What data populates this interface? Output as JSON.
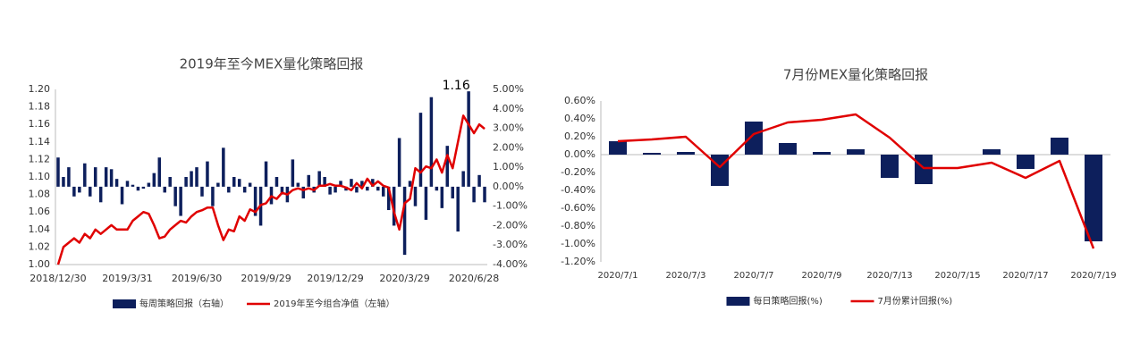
{
  "chart_data": [
    {
      "type": "combo",
      "title": "2019年至今MEX量化策略回报",
      "annotation": "1.16",
      "categories": [
        "2018/12/30",
        null,
        null,
        null,
        null,
        null,
        null,
        null,
        null,
        null,
        null,
        null,
        null,
        "2019/3/31",
        null,
        null,
        null,
        null,
        null,
        null,
        null,
        null,
        null,
        null,
        null,
        null,
        "2019/6/30",
        null,
        null,
        null,
        null,
        null,
        null,
        null,
        null,
        null,
        null,
        null,
        null,
        "2019/9/29",
        null,
        null,
        null,
        null,
        null,
        null,
        null,
        null,
        null,
        null,
        null,
        null,
        "2019/12/29",
        null,
        null,
        null,
        null,
        null,
        null,
        null,
        null,
        null,
        null,
        null,
        null,
        "2020/3/29",
        null,
        null,
        null,
        null,
        null,
        null,
        null,
        null,
        null,
        null,
        null,
        null,
        "2020/6/28",
        null,
        null
      ],
      "series": [
        {
          "name": "每周策略回报（右轴）",
          "type": "bar",
          "axis": "y2",
          "color": "#0d1f5c",
          "values": [
            1.5,
            0.5,
            1.0,
            -0.5,
            -0.3,
            1.2,
            -0.5,
            1.0,
            -0.8,
            1.0,
            0.9,
            0.4,
            -0.9,
            0.3,
            0.1,
            -0.2,
            -0.1,
            0.2,
            0.7,
            1.5,
            -0.3,
            0.5,
            -1.0,
            -1.5,
            0.5,
            0.8,
            1.0,
            -0.5,
            1.3,
            -1.0,
            0.2,
            2.0,
            -0.3,
            0.5,
            0.4,
            -0.3,
            0.2,
            -1.5,
            -2.0,
            1.3,
            -0.9,
            0.5,
            -0.4,
            -0.8,
            1.4,
            0.2,
            -0.6,
            0.6,
            -0.3,
            0.8,
            0.5,
            -0.4,
            -0.3,
            0.3,
            -0.2,
            0.4,
            -0.3,
            0.3,
            -0.2,
            0.4,
            -0.2,
            -0.5,
            -1.2,
            -2.0,
            2.5,
            -3.5,
            0.3,
            -1.0,
            3.8,
            -1.7,
            4.6,
            -0.2,
            -1.1,
            2.1,
            -0.6,
            -2.3,
            0.8,
            4.9,
            -0.8,
            0.6,
            -0.8
          ]
        },
        {
          "name": "2019年至今组合净值（左轴）",
          "type": "line",
          "color": "#e00000",
          "values": [
            1.0,
            1.02,
            1.025,
            1.03,
            1.025,
            1.035,
            1.03,
            1.04,
            1.035,
            1.04,
            1.045,
            1.04,
            1.04,
            1.04,
            1.05,
            1.055,
            1.06,
            1.058,
            1.045,
            1.03,
            1.032,
            1.04,
            1.045,
            1.05,
            1.048,
            1.055,
            1.06,
            1.062,
            1.065,
            1.065,
            1.045,
            1.028,
            1.04,
            1.038,
            1.055,
            1.05,
            1.063,
            1.06,
            1.068,
            1.07,
            1.078,
            1.075,
            1.082,
            1.08,
            1.085,
            1.087,
            1.085,
            1.087,
            1.085,
            1.09,
            1.09,
            1.092,
            1.09,
            1.09,
            1.088,
            1.085,
            1.093,
            1.087,
            1.098,
            1.09,
            1.095,
            1.09,
            1.088,
            1.06,
            1.04,
            1.07,
            1.075,
            1.11,
            1.105,
            1.112,
            1.11,
            1.12,
            1.105,
            1.125,
            1.11,
            1.14,
            1.17,
            1.16,
            1.15,
            1.16,
            1.155
          ]
        }
      ],
      "ylim": [
        1.0,
        1.2
      ],
      "yticks": [
        {
          "value": 1.0,
          "label": "1.00"
        },
        1.02,
        1.04,
        1.06,
        1.08,
        {
          "value": 1.1,
          "label": "1.10"
        },
        1.12,
        1.14,
        1.16,
        1.18,
        {
          "value": 1.2,
          "label": "1.20"
        }
      ],
      "y2lim": [
        -4,
        5
      ],
      "y2ticks": [
        {
          "value": -4,
          "label": "-4.00%"
        },
        {
          "value": -3,
          "label": "-3.00%"
        },
        {
          "value": -2,
          "label": "-2.00%"
        },
        {
          "value": -1,
          "label": "-1.00%"
        },
        {
          "value": 0,
          "label": "0.00%"
        },
        {
          "value": 1,
          "label": "1.00%"
        },
        {
          "value": 2,
          "label": "2.00%"
        },
        {
          "value": 3,
          "label": "3.00%"
        },
        {
          "value": 4,
          "label": "4.00%"
        },
        {
          "value": 5,
          "label": "5.00%"
        }
      ],
      "grid": false,
      "legend": "bottom"
    },
    {
      "type": "combo",
      "title": "7月份MEX量化策略回报",
      "categories": [
        "2020/7/1",
        null,
        "2020/7/3",
        null,
        "2020/7/7",
        null,
        "2020/7/9",
        null,
        "2020/7/13",
        null,
        "2020/7/15",
        null,
        "2020/7/17",
        null,
        "2020/7/19"
      ],
      "series": [
        {
          "name": "每日策略回报(%)",
          "type": "bar",
          "color": "#0d1f5c",
          "values": [
            0.15,
            0.02,
            0.03,
            -0.35,
            0.37,
            0.13,
            0.03,
            0.06,
            -0.26,
            -0.33,
            0.0,
            0.06,
            -0.16,
            0.19,
            -0.97
          ]
        },
        {
          "name": "7月份累计回报(%)",
          "type": "line",
          "color": "#e00000",
          "values": [
            0.15,
            0.17,
            0.2,
            -0.14,
            0.23,
            0.36,
            0.39,
            0.45,
            0.19,
            -0.15,
            -0.15,
            -0.09,
            -0.26,
            -0.07,
            -1.05
          ]
        }
      ],
      "ylim": [
        -1.2,
        0.6
      ],
      "yticks": [
        {
          "value": -1.2,
          "label": "-1.20%"
        },
        {
          "value": -1.0,
          "label": "-1.00%"
        },
        {
          "value": -0.8,
          "label": "-0.80%"
        },
        {
          "value": -0.6,
          "label": "-0.60%"
        },
        {
          "value": -0.4,
          "label": "-0.40%"
        },
        {
          "value": -0.2,
          "label": "-0.20%"
        },
        {
          "value": 0,
          "label": "0.00%"
        },
        {
          "value": 0.2,
          "label": "0.20%"
        },
        {
          "value": 0.4,
          "label": "0.40%"
        },
        {
          "value": 0.6,
          "label": "0.60%"
        }
      ],
      "grid": false,
      "legend": "bottom"
    }
  ]
}
